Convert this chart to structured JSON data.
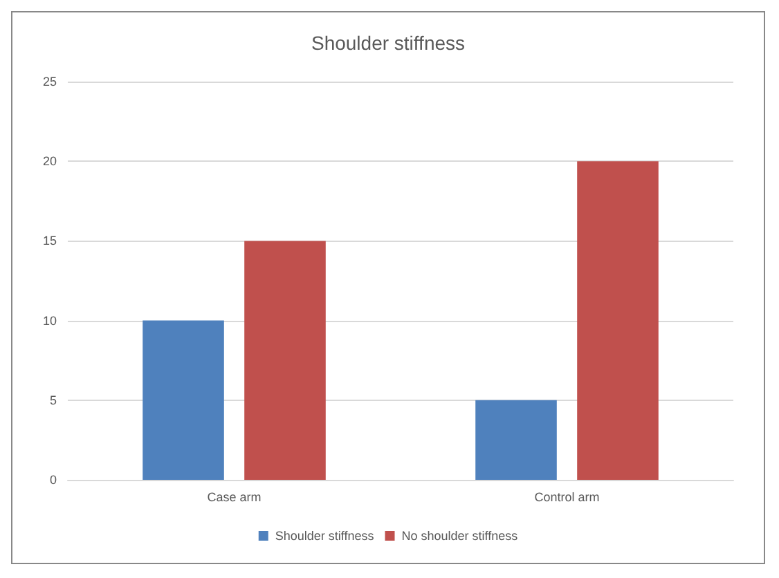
{
  "chart_data": {
    "type": "bar",
    "title": "Shoulder stiffness",
    "categories": [
      "Case arm",
      "Control arm"
    ],
    "series": [
      {
        "name": "Shoulder stiffness",
        "color": "#4f81bd",
        "values": [
          10,
          5
        ]
      },
      {
        "name": "No shoulder stiffness",
        "color": "#c0504d",
        "values": [
          15,
          20
        ]
      }
    ],
    "ylim": [
      0,
      25
    ],
    "yticks": [
      0,
      5,
      10,
      15,
      20,
      25
    ],
    "grid": "y",
    "legend": "bottom"
  }
}
